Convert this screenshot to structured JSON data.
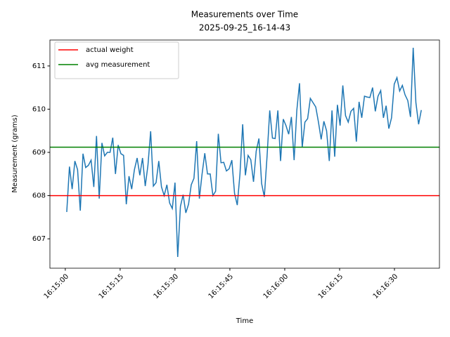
{
  "chart_data": {
    "type": "line",
    "title": "Measurements over Time",
    "subtitle": "2025-09-25_16-14-43",
    "x_label": "Time",
    "y_label": "Measurement (grams)",
    "x": [
      0.4,
      1.14,
      1.88,
      2.62,
      3.36,
      4.1,
      4.84,
      5.58,
      6.32,
      7.06,
      7.8,
      8.54,
      9.28,
      10.02,
      10.76,
      11.5,
      12.24,
      12.98,
      13.72,
      14.46,
      15.2,
      15.94,
      16.68,
      17.42,
      18.16,
      18.9,
      19.64,
      20.38,
      21.12,
      21.86,
      22.6,
      23.34,
      24.08,
      24.82,
      25.56,
      26.3,
      27.04,
      27.78,
      28.52,
      29.26,
      30,
      30.74,
      31.48,
      32.22,
      32.96,
      33.7,
      34.44,
      35.18,
      35.92,
      36.66,
      37.4,
      38.14,
      38.88,
      39.62,
      40.36,
      41.1,
      41.84,
      42.58,
      43.32,
      44.06,
      44.8,
      45.54,
      46.28,
      47.02,
      47.76,
      48.5,
      49.24,
      49.98,
      50.72,
      51.46,
      52.2,
      52.94,
      53.68,
      54.42,
      55.16,
      55.9,
      56.64,
      57.38,
      58.12,
      58.86,
      59.6,
      60.34,
      61.08,
      61.82,
      62.56,
      63.3,
      64.04,
      64.78,
      65.52,
      66.26,
      67,
      67.74,
      68.48,
      69.22,
      69.96,
      70.7,
      71.44,
      72.18,
      72.92,
      73.66,
      74.4,
      75.14,
      75.88,
      76.62,
      77.36,
      78.1,
      78.84,
      79.58,
      80.32,
      81.06,
      81.8,
      82.54,
      83.28,
      84.02,
      84.76,
      85.5,
      86.24,
      86.98,
      87.72,
      88.46,
      89.2,
      89.94,
      90.68,
      91.42,
      92.16,
      92.9,
      93.64,
      94.38,
      95.12,
      95.86,
      96.6,
      97.34
    ],
    "series": [
      {
        "color": "#1f77b4",
        "values": [
          607.62,
          608.67,
          608.15,
          608.8,
          608.6,
          607.65,
          608.97,
          608.65,
          608.7,
          608.82,
          608.2,
          609.38,
          607.93,
          609.22,
          608.92,
          609.0,
          609.0,
          609.34,
          608.5,
          609.17,
          608.97,
          608.93,
          607.8,
          608.45,
          608.15,
          608.6,
          608.87,
          608.47,
          608.87,
          608.22,
          608.7,
          609.49,
          608.22,
          608.3,
          608.8,
          608.2,
          608.0,
          608.25,
          607.83,
          607.7,
          608.3,
          606.58,
          607.75,
          608.02,
          607.6,
          607.8,
          608.25,
          608.4,
          609.26,
          607.93,
          608.5,
          608.98,
          608.5,
          608.5,
          608.0,
          608.1,
          609.43,
          608.76,
          608.77,
          608.57,
          608.62,
          608.82,
          608.05,
          607.78,
          608.5,
          609.65,
          608.47,
          608.93,
          608.83,
          608.32,
          609.03,
          609.32,
          608.28,
          607.97,
          608.9,
          609.97,
          609.33,
          609.32,
          609.97,
          608.8,
          609.77,
          609.62,
          609.42,
          609.82,
          608.82,
          609.97,
          610.6,
          609.12,
          609.7,
          609.78,
          610.25,
          610.15,
          610.05,
          609.7,
          609.3,
          609.72,
          609.5,
          608.8,
          609.97,
          608.9,
          610.1,
          609.62,
          610.55,
          609.85,
          609.7,
          609.95,
          610.02,
          609.25,
          610.17,
          609.8,
          610.3,
          610.28,
          610.27,
          610.5,
          609.95,
          610.3,
          610.43,
          609.8,
          610.08,
          609.55,
          609.8,
          610.58,
          610.73,
          610.42,
          610.55,
          610.33,
          610.2,
          609.82,
          611.42,
          610.15,
          609.65,
          609.98
        ]
      }
    ],
    "hlines": [
      {
        "name": "actual weight",
        "color": "#ff0000",
        "value": 608
      },
      {
        "name": "avg measurement",
        "color": "#008000",
        "value": 609.12
      }
    ],
    "xlim": [
      -4.2,
      102.3
    ],
    "xticks": [
      {
        "value": 0,
        "label": "16:15:00"
      },
      {
        "value": 15,
        "label": "16:15:15"
      },
      {
        "value": 30,
        "label": "16:15:30"
      },
      {
        "value": 45,
        "label": "16:15:45"
      },
      {
        "value": 60,
        "label": "16:16:00"
      },
      {
        "value": 75,
        "label": "16:16:15"
      },
      {
        "value": 90,
        "label": "16:16:30"
      }
    ],
    "ylim": [
      606.32,
      611.6
    ],
    "yticks": [
      607,
      608,
      609,
      610,
      611
    ],
    "grid": false,
    "legend": "upper left"
  }
}
